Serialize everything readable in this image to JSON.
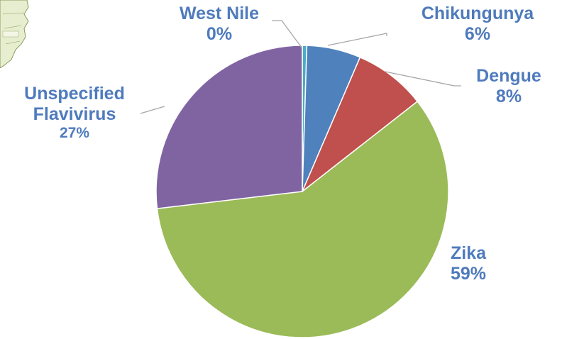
{
  "chart_data": {
    "type": "pie",
    "title": "",
    "start_angle_deg": 0,
    "direction": "clockwise",
    "slices": [
      {
        "label": "West Nile",
        "value": 0.5,
        "value_label": "0%",
        "color": "#4bacc6"
      },
      {
        "label": "Chikungunya",
        "value": 6,
        "value_label": "6%",
        "color": "#4f81bd"
      },
      {
        "label": "Dengue",
        "value": 8,
        "value_label": "8%",
        "color": "#c0504d"
      },
      {
        "label": "Zika",
        "value": 59,
        "value_label": "59%",
        "color": "#9bbb59"
      },
      {
        "label": "Unspecified Flavivirus",
        "value": 27,
        "value_label": "27%",
        "color": "#8064a2"
      }
    ],
    "label_color": "#4f7bbd",
    "leader_line_color": "#a6a6a6"
  },
  "labels": {
    "west_nile_name": "West Nile",
    "west_nile_pct": "0%",
    "chikungunya_name": "Chikungunya",
    "chikungunya_pct": "6%",
    "dengue_name": "Dengue",
    "dengue_pct": "8%",
    "zika_name": "Zika",
    "zika_pct": "59%",
    "unspecified_name_line1": "Unspecified",
    "unspecified_name_line2": "Flavivirus",
    "unspecified_pct": "27%"
  },
  "decoration": {
    "map_fragment_color": "#e7eecf",
    "map_fragment_outline": "#8a9a5b"
  }
}
